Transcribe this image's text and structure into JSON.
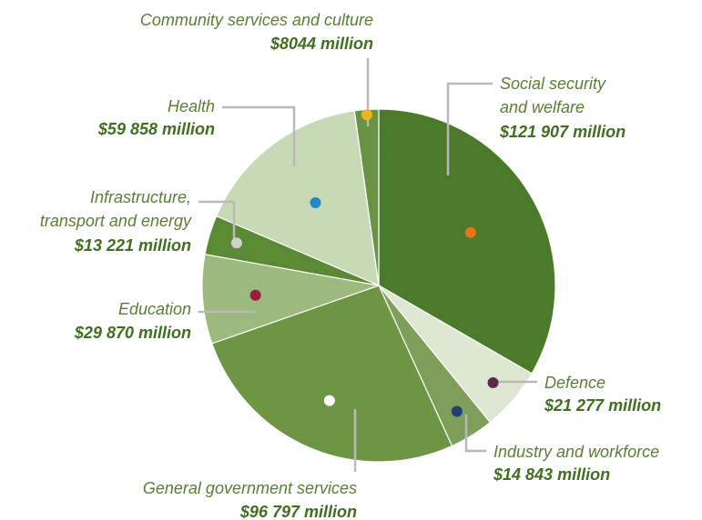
{
  "chart_data": {
    "type": "pie",
    "title": "",
    "unit": "million",
    "slices": [
      {
        "name": "Social security and welfare",
        "value": 121907,
        "value_label": "$121 907 million",
        "color": "#4a7a2a",
        "dot_color": "#e8741e"
      },
      {
        "name": "Defence",
        "value": 21277,
        "value_label": "$21 277 million",
        "color": "#dde7d2",
        "dot_color": "#5a2a4a"
      },
      {
        "name": "Industry and workforce",
        "value": 14843,
        "value_label": "$14 843 million",
        "color": "#7d9f5a",
        "dot_color": "#1e3f7a"
      },
      {
        "name": "General government services",
        "value": 96797,
        "value_label": "$96 797 million",
        "color": "#6d9544",
        "dot_color": "#ffffff"
      },
      {
        "name": "Education",
        "value": 29870,
        "value_label": "$29 870 million",
        "color": "#9cb97e",
        "dot_color": "#9b1c3c"
      },
      {
        "name": "Infrastructure, transport and energy",
        "value": 13221,
        "value_label": "$13 221 million",
        "color": "#5a8a34",
        "dot_color": "#cfcfcf"
      },
      {
        "name": "Health",
        "value": 59858,
        "value_label": "$59 858 million",
        "color": "#c8d9b6",
        "dot_color": "#1e8ac8"
      },
      {
        "name": "Community services and culture",
        "value": 8044,
        "value_label": "$8044 million",
        "color": "#6a9244",
        "dot_color": "#f2b21a"
      }
    ]
  },
  "labels": [
    {
      "lines": [
        "Social security",
        "and welfare"
      ],
      "value": "$121 907 million"
    },
    {
      "lines": [
        "Defence"
      ],
      "value": "$21 277 million"
    },
    {
      "lines": [
        "Industry and workforce"
      ],
      "value": "$14 843 million"
    },
    {
      "lines": [
        "General government services"
      ],
      "value": "$96 797 million"
    },
    {
      "lines": [
        "Education"
      ],
      "value": "$29 870 million"
    },
    {
      "lines": [
        "Infrastructure,",
        "transport and energy"
      ],
      "value": "$13 221 million"
    },
    {
      "lines": [
        "Health"
      ],
      "value": "$59 858 million"
    },
    {
      "lines": [
        "Community services and culture"
      ],
      "value": "$8044 million"
    }
  ]
}
